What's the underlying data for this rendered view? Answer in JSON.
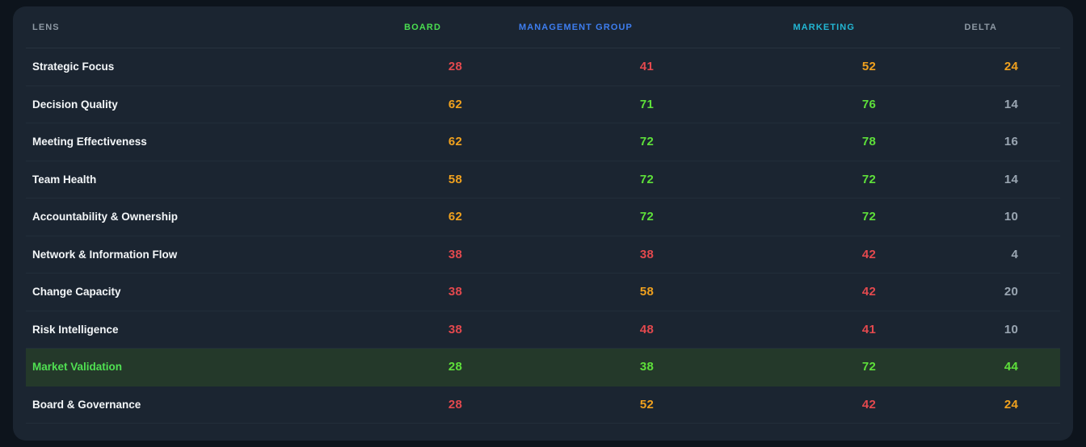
{
  "table": {
    "columns": [
      {
        "key": "lens",
        "label": "LENS",
        "color": "#8e99a4"
      },
      {
        "key": "board",
        "label": "BOARD",
        "color": "#4ade50"
      },
      {
        "key": "mgmt",
        "label": "MANAGEMENT GROUP",
        "color": "#3e7ef0"
      },
      {
        "key": "marketing",
        "label": "MARKETING",
        "color": "#23b7d4"
      },
      {
        "key": "delta",
        "label": "DELTA",
        "color": "#8e99a4"
      }
    ],
    "rows": [
      {
        "lens": "Strategic Focus",
        "highlight": false,
        "cells": [
          {
            "v": "28",
            "c": "red"
          },
          {
            "v": "41",
            "c": "red"
          },
          {
            "v": "52",
            "c": "orange"
          },
          {
            "v": "24",
            "c": "orange"
          }
        ]
      },
      {
        "lens": "Decision Quality",
        "highlight": false,
        "cells": [
          {
            "v": "62",
            "c": "orange"
          },
          {
            "v": "71",
            "c": "green"
          },
          {
            "v": "76",
            "c": "green"
          },
          {
            "v": "14",
            "c": "gray"
          }
        ]
      },
      {
        "lens": "Meeting Effectiveness",
        "highlight": false,
        "cells": [
          {
            "v": "62",
            "c": "orange"
          },
          {
            "v": "72",
            "c": "green"
          },
          {
            "v": "78",
            "c": "green"
          },
          {
            "v": "16",
            "c": "gray"
          }
        ]
      },
      {
        "lens": "Team Health",
        "highlight": false,
        "cells": [
          {
            "v": "58",
            "c": "orange"
          },
          {
            "v": "72",
            "c": "green"
          },
          {
            "v": "72",
            "c": "green"
          },
          {
            "v": "14",
            "c": "gray"
          }
        ]
      },
      {
        "lens": "Accountability & Ownership",
        "highlight": false,
        "cells": [
          {
            "v": "62",
            "c": "orange"
          },
          {
            "v": "72",
            "c": "green"
          },
          {
            "v": "72",
            "c": "green"
          },
          {
            "v": "10",
            "c": "gray"
          }
        ]
      },
      {
        "lens": "Network & Information Flow",
        "highlight": false,
        "cells": [
          {
            "v": "38",
            "c": "red"
          },
          {
            "v": "38",
            "c": "red"
          },
          {
            "v": "42",
            "c": "red"
          },
          {
            "v": "4",
            "c": "gray"
          }
        ]
      },
      {
        "lens": "Change Capacity",
        "highlight": false,
        "cells": [
          {
            "v": "38",
            "c": "red"
          },
          {
            "v": "58",
            "c": "orange"
          },
          {
            "v": "42",
            "c": "red"
          },
          {
            "v": "20",
            "c": "gray"
          }
        ]
      },
      {
        "lens": "Risk Intelligence",
        "highlight": false,
        "cells": [
          {
            "v": "38",
            "c": "red"
          },
          {
            "v": "48",
            "c": "red"
          },
          {
            "v": "41",
            "c": "red"
          },
          {
            "v": "10",
            "c": "gray"
          }
        ]
      },
      {
        "lens": "Market Validation",
        "highlight": true,
        "cells": [
          {
            "v": "28",
            "c": "green"
          },
          {
            "v": "38",
            "c": "green"
          },
          {
            "v": "72",
            "c": "green"
          },
          {
            "v": "44",
            "c": "green"
          }
        ]
      },
      {
        "lens": "Board & Governance",
        "highlight": false,
        "cells": [
          {
            "v": "28",
            "c": "red"
          },
          {
            "v": "52",
            "c": "orange"
          },
          {
            "v": "42",
            "c": "red"
          },
          {
            "v": "24",
            "c": "orange"
          }
        ]
      }
    ]
  },
  "colors": {
    "red": "#e4494e",
    "orange": "#f0a11e",
    "green": "#5ee03a",
    "gray": "#9aa6b2",
    "highlight_bg": "#24392a",
    "highlight_label": "#50e052",
    "card_bg": "#1b2531",
    "page_bg": "#0d141c"
  }
}
